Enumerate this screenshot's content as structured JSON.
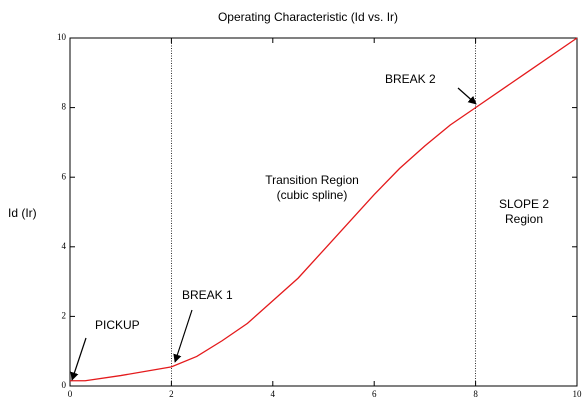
{
  "chart_data": {
    "type": "line",
    "title": "Operating Characteristic (Id vs. Ir)",
    "y_label": "Id (Ir)",
    "x": [
      0,
      0.3,
      1,
      2,
      2.5,
      3,
      3.5,
      4,
      4.5,
      5,
      5.5,
      6,
      6.5,
      7,
      7.5,
      8,
      9,
      10
    ],
    "series": [
      {
        "color": "#e41a1c",
        "values": [
          0.15,
          0.15,
          0.3,
          0.55,
          0.85,
          1.3,
          1.8,
          2.45,
          3.1,
          3.9,
          4.7,
          5.5,
          6.25,
          6.9,
          7.5,
          8,
          9,
          10
        ]
      }
    ],
    "xlim": [
      0,
      10
    ],
    "ylim": [
      0,
      10
    ],
    "xticks": [
      0,
      2,
      4,
      6,
      8,
      10
    ],
    "yticks": [
      0,
      2,
      4,
      6,
      8,
      10
    ],
    "vlines": [
      2,
      8
    ],
    "annotations": [
      {
        "lines": [
          "PICKUP"
        ]
      },
      {
        "lines": [
          "BREAK 1"
        ]
      },
      {
        "lines": [
          "BREAK 2"
        ]
      },
      {
        "lines": [
          "Transition Region",
          "(cubic spline)"
        ]
      },
      {
        "lines": [
          "SLOPE 2",
          "Region"
        ]
      }
    ]
  }
}
